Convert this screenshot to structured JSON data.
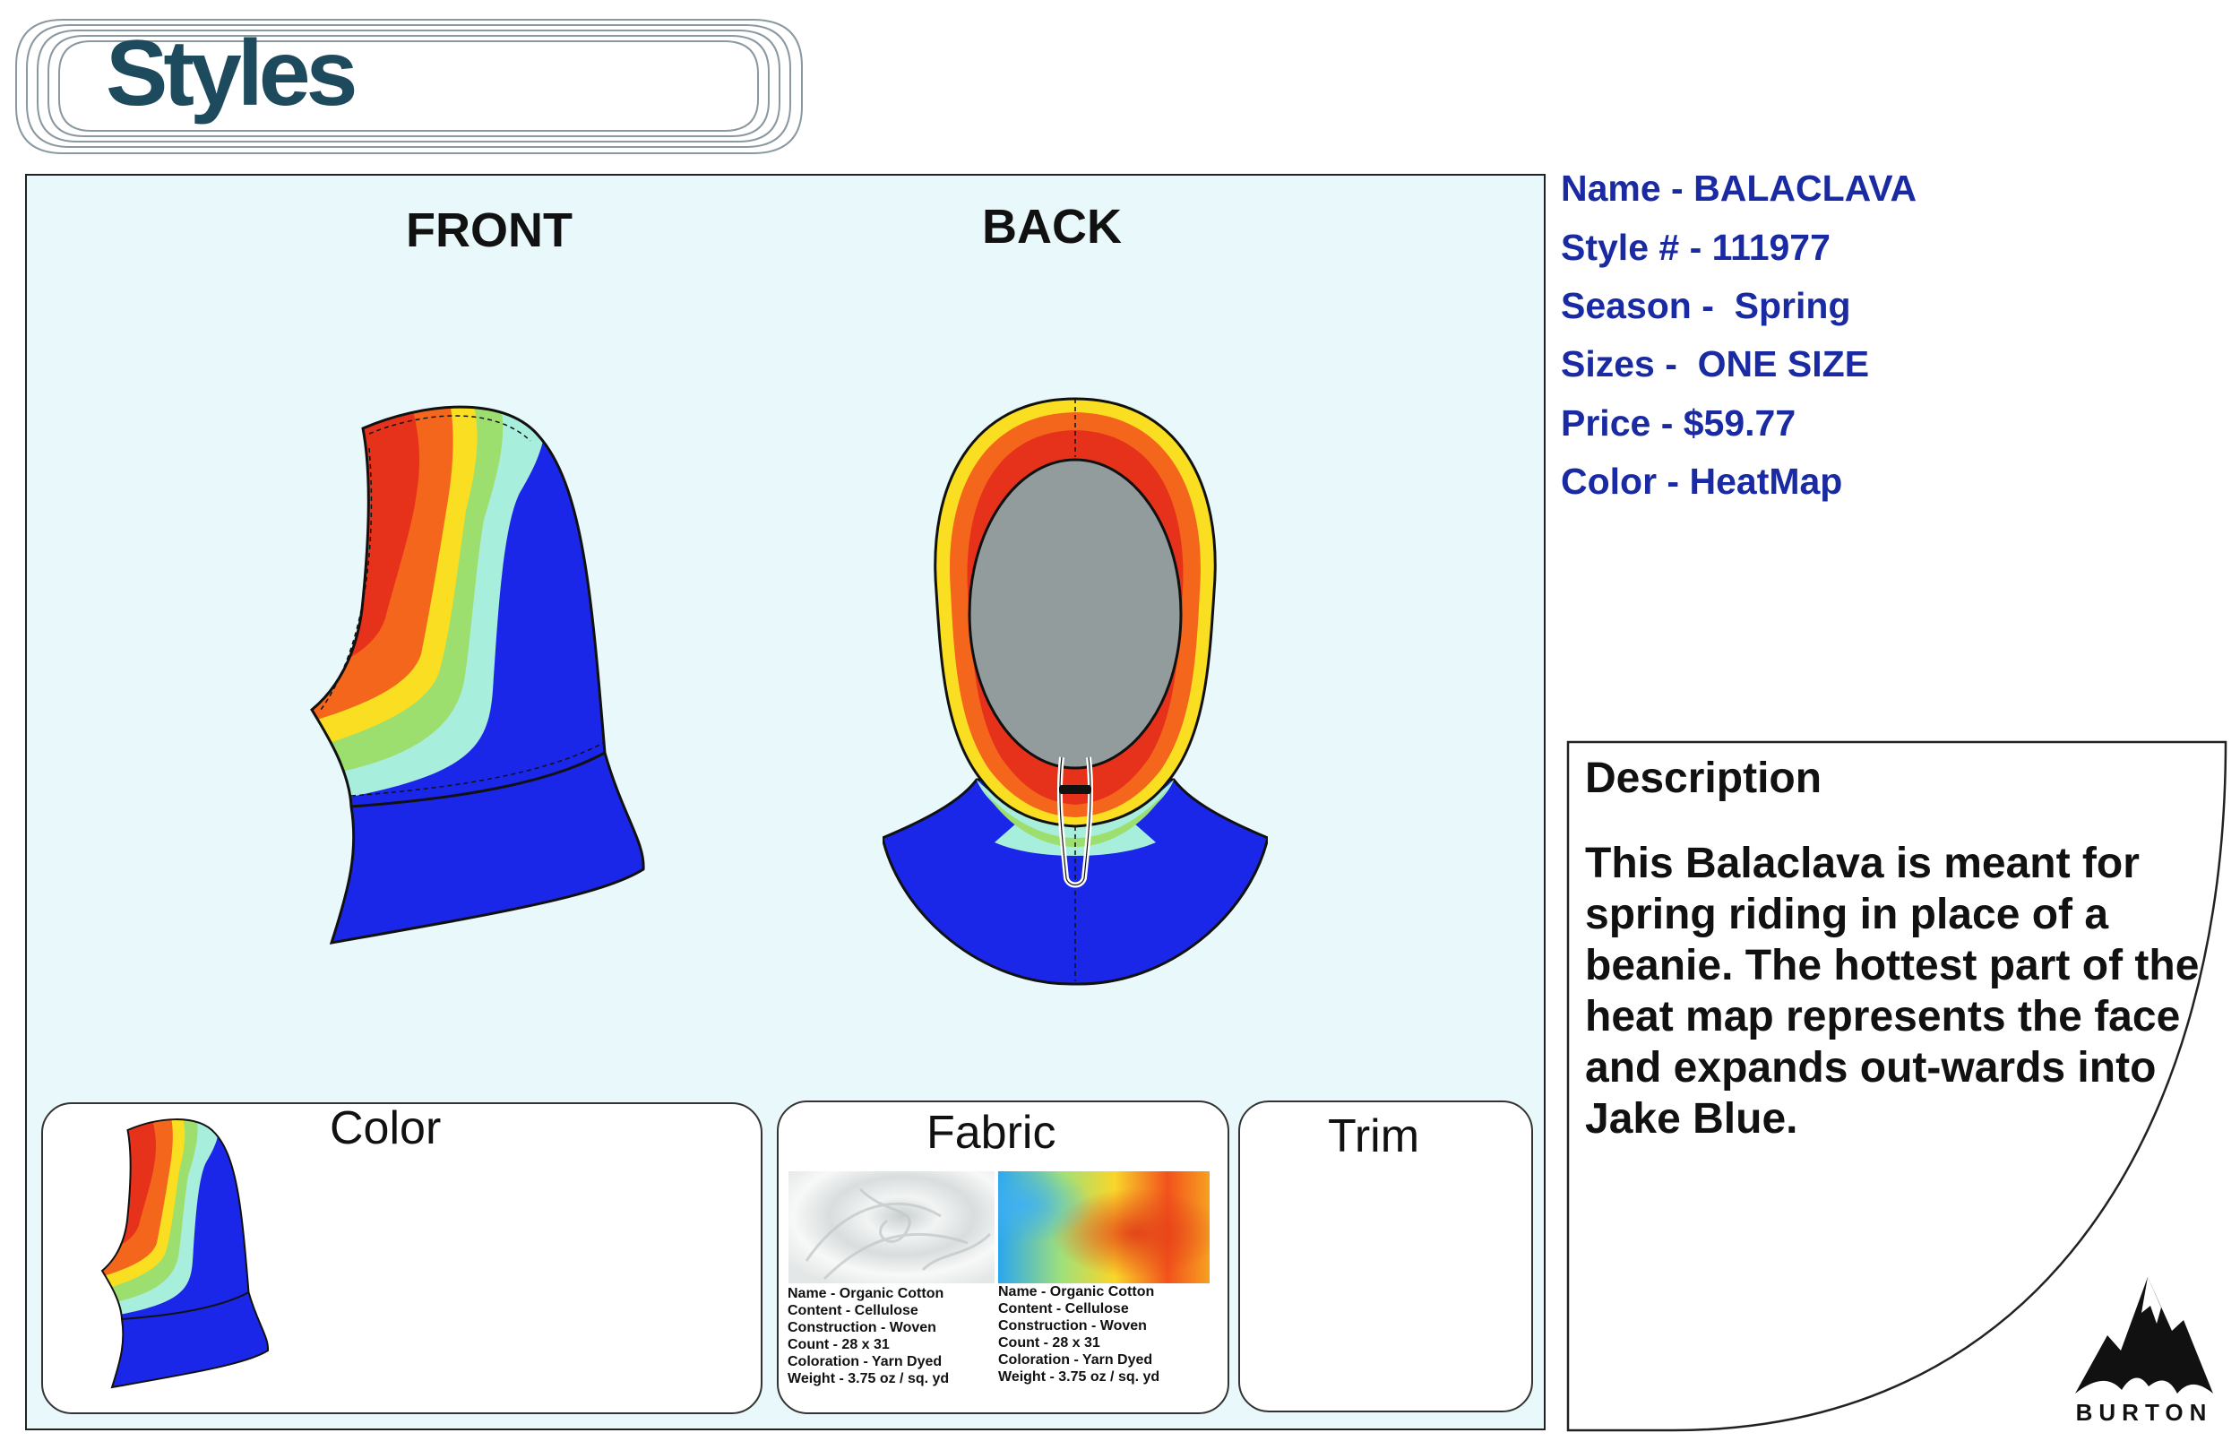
{
  "header": {
    "title": "Styles"
  },
  "views": {
    "front_label": "FRONT",
    "back_label": "BACK"
  },
  "specs": {
    "name": "Name - BALACLAVA",
    "style": "Style # - 111977",
    "season": "Season -  Spring",
    "sizes": "Sizes -  ONE SIZE",
    "price": "Price - $59.77",
    "color": "Color - HeatMap"
  },
  "cards": {
    "color_title": "Color",
    "fabric_title": "Fabric",
    "trim_title": "Trim"
  },
  "fabrics": [
    {
      "name": "Name - Organic Cotton",
      "content": "Content - Cellulose",
      "construction": "Construction - Woven",
      "count": "Count - 28 x 31",
      "coloration": "Coloration - Yarn Dyed",
      "weight": "Weight - 3.75 oz / sq. yd"
    },
    {
      "name": "Name - Organic Cotton",
      "content": "Content - Cellulose",
      "construction": "Construction - Woven",
      "count": "Count - 28 x 31",
      "coloration": "Coloration - Yarn Dyed",
      "weight": "Weight - 3.75 oz / sq. yd"
    }
  ],
  "description": {
    "title": "Description",
    "body": "This Balaclava is meant for spring riding in place of a beanie. The hottest part of the heat map represents the face and expands out-wards into Jake Blue."
  },
  "brand": {
    "name": "BURTON"
  },
  "colors": {
    "jake_blue": "#1b27e8",
    "heat_red": "#e7321b",
    "heat_orange": "#f4661c",
    "heat_yellow": "#f9de22",
    "heat_green": "#9ddf6e",
    "heat_mint": "#a8eedd",
    "face_gray": "#939c9c",
    "spec_text": "#1a2aa3",
    "title": "#1e4a5e",
    "panel_bg": "#e9f8fb"
  }
}
